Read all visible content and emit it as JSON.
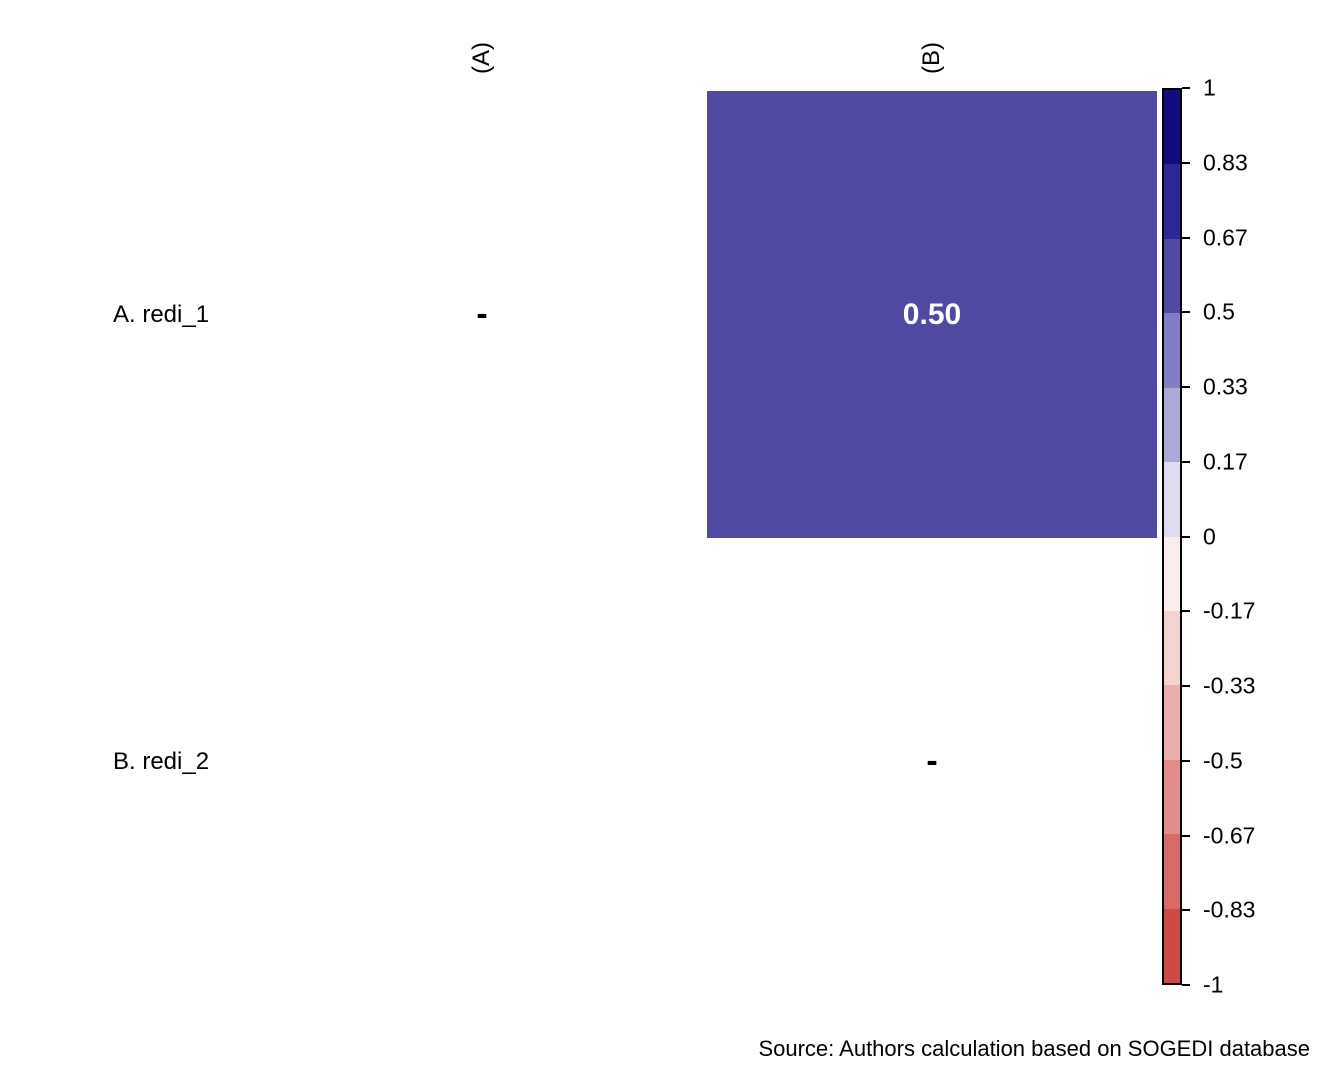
{
  "chart_data": {
    "type": "heatmap",
    "subtype": "correlation-matrix-upper-triangle",
    "title": "",
    "columns": [
      "(A)",
      "(B)"
    ],
    "rows": [
      "A. redi_1",
      "B. redi_2"
    ],
    "matrix_values": [
      [
        null,
        0.5
      ],
      [
        null,
        null
      ]
    ],
    "cells": [
      {
        "row": 0,
        "col": 0,
        "kind": "diagonal",
        "label": "-",
        "bg": "",
        "text_color": "#000000"
      },
      {
        "row": 0,
        "col": 1,
        "kind": "value",
        "label": "0.50",
        "value": 0.5,
        "bg": "#4F49A1",
        "text_color": "#FFFFFF"
      },
      {
        "row": 1,
        "col": 1,
        "kind": "diagonal",
        "label": "-",
        "bg": "",
        "text_color": "#000000"
      }
    ],
    "colorbar": {
      "range": [
        1,
        -1
      ],
      "tick_labels": [
        "1",
        "0.83",
        "0.67",
        "0.5",
        "0.33",
        "0.17",
        "0",
        "-0.17",
        "-0.33",
        "-0.5",
        "-0.67",
        "-0.83",
        "-1"
      ],
      "segment_colors": [
        "#110D7E",
        "#2B2795",
        "#4F49A1",
        "#827EC3",
        "#ACA9D7",
        "#DEDCEF",
        "#FBEDEB",
        "#F4D3D1",
        "#EAAFAD",
        "#E08E8C",
        "#D76B69",
        "#CE4A47"
      ],
      "border_color": "#000000"
    },
    "legend_position": "right",
    "grid": false,
    "source_note": "Source: Authors calculation based on SOGEDI database"
  }
}
